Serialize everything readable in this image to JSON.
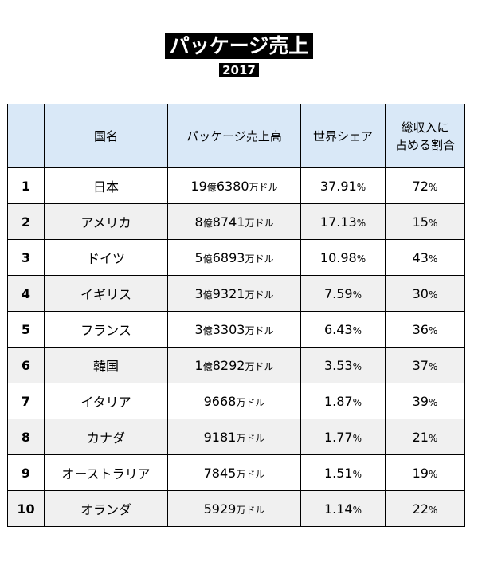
{
  "header": {
    "title": "パッケージ売上",
    "subtitle": "2017"
  },
  "table": {
    "columns": [
      "",
      "国名",
      "パッケージ売上高",
      "世界シェア",
      "総収入に占める割合"
    ],
    "column_header_lines": {
      "share_of_revenue": [
        "総収入に",
        "占める割合"
      ]
    },
    "rows": [
      {
        "rank": "1",
        "country": "日本",
        "sales_oku": "19",
        "oku_unit": "億",
        "sales_man": "6380",
        "man_unit": "万ドル",
        "world_share": "37.91",
        "share_of_revenue": "72",
        "pct_unit": "%"
      },
      {
        "rank": "2",
        "country": "アメリカ",
        "sales_oku": "8",
        "oku_unit": "億",
        "sales_man": "8741",
        "man_unit": "万ドル",
        "world_share": "17.13",
        "share_of_revenue": "15",
        "pct_unit": "%"
      },
      {
        "rank": "3",
        "country": "ドイツ",
        "sales_oku": "5",
        "oku_unit": "億",
        "sales_man": "6893",
        "man_unit": "万ドル",
        "world_share": "10.98",
        "share_of_revenue": "43",
        "pct_unit": "%"
      },
      {
        "rank": "4",
        "country": "イギリス",
        "sales_oku": "3",
        "oku_unit": "億",
        "sales_man": "9321",
        "man_unit": "万ドル",
        "world_share": "7.59",
        "share_of_revenue": "30",
        "pct_unit": "%"
      },
      {
        "rank": "5",
        "country": "フランス",
        "sales_oku": "3",
        "oku_unit": "億",
        "sales_man": "3303",
        "man_unit": "万ドル",
        "world_share": "6.43",
        "share_of_revenue": "36",
        "pct_unit": "%"
      },
      {
        "rank": "6",
        "country": "韓国",
        "sales_oku": "1",
        "oku_unit": "億",
        "sales_man": "8292",
        "man_unit": "万ドル",
        "world_share": "3.53",
        "share_of_revenue": "37",
        "pct_unit": "%"
      },
      {
        "rank": "7",
        "country": "イタリア",
        "sales_oku": "",
        "oku_unit": "",
        "sales_man": "9668",
        "man_unit": "万ドル",
        "world_share": "1.87",
        "share_of_revenue": "39",
        "pct_unit": "%"
      },
      {
        "rank": "8",
        "country": "カナダ",
        "sales_oku": "",
        "oku_unit": "",
        "sales_man": "9181",
        "man_unit": "万ドル",
        "world_share": "1.77",
        "share_of_revenue": "21",
        "pct_unit": "%"
      },
      {
        "rank": "9",
        "country": "オーストラリア",
        "sales_oku": "",
        "oku_unit": "",
        "sales_man": "7845",
        "man_unit": "万ドル",
        "world_share": "1.51",
        "share_of_revenue": "19",
        "pct_unit": "%"
      },
      {
        "rank": "10",
        "country": "オランダ",
        "sales_oku": "",
        "oku_unit": "",
        "sales_man": "5929",
        "man_unit": "万ドル",
        "world_share": "1.14",
        "share_of_revenue": "22",
        "pct_unit": "%"
      }
    ]
  },
  "colors": {
    "header_bg": "#d9e8f7",
    "stripe_bg": "#f0f0f0",
    "title_bg": "#000000"
  },
  "chart_data": {
    "type": "table",
    "title": "パッケージ売上",
    "subtitle": "2017",
    "columns": [
      "",
      "国名",
      "パッケージ売上高",
      "世界シェア",
      "総収入に占める割合"
    ],
    "rows": [
      [
        "1",
        "日本",
        "19億6380万ドル",
        "37.91%",
        "72%"
      ],
      [
        "2",
        "アメリカ",
        "8億8741万ドル",
        "17.13%",
        "15%"
      ],
      [
        "3",
        "ドイツ",
        "5億6893万ドル",
        "10.98%",
        "43%"
      ],
      [
        "4",
        "イギリス",
        "3億9321万ドル",
        "7.59%",
        "30%"
      ],
      [
        "5",
        "フランス",
        "3億3303万ドル",
        "6.43%",
        "36%"
      ],
      [
        "6",
        "韓国",
        "1億8292万ドル",
        "3.53%",
        "37%"
      ],
      [
        "7",
        "イタリア",
        "9668万ドル",
        "1.87%",
        "39%"
      ],
      [
        "8",
        "カナダ",
        "9181万ドル",
        "1.77%",
        "21%"
      ],
      [
        "9",
        "オーストラリア",
        "7845万ドル",
        "1.51%",
        "19%"
      ],
      [
        "10",
        "オランダ",
        "5929万ドル",
        "1.14%",
        "22%"
      ]
    ]
  }
}
